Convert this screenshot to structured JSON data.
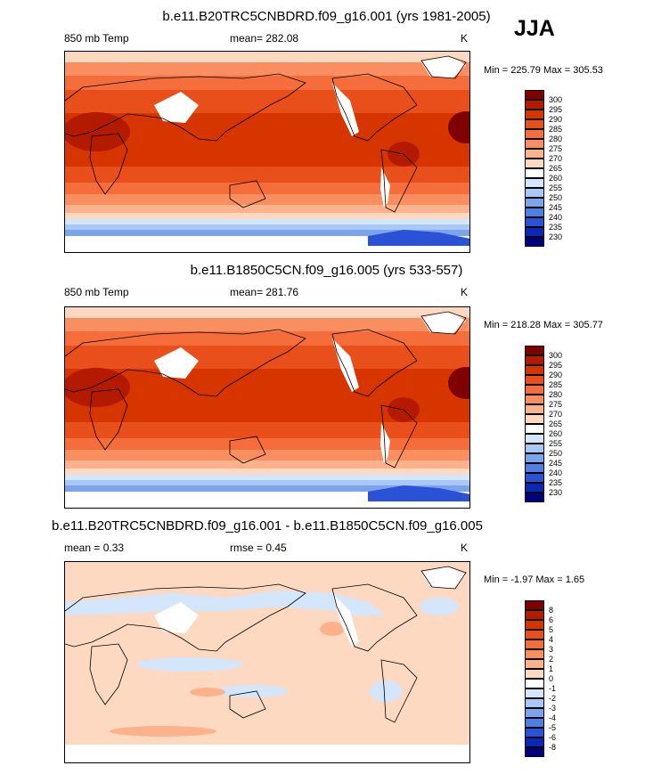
{
  "season": "JJA",
  "panels": [
    {
      "title": "b.e11.B20TRC5CNBDRD.f09_g16.001 (yrs 1981-2005)",
      "left_label": "850 mb Temp",
      "center_label": "mean= 282.08",
      "right_label": "K",
      "minmax": "Min = 225.79 Max = 305.53",
      "levels": [
        "300",
        "295",
        "290",
        "285",
        "280",
        "275",
        "270",
        "265",
        "260",
        "255",
        "250",
        "245",
        "240",
        "235",
        "230"
      ],
      "colors": [
        "#7f0000",
        "#b41a00",
        "#d63500",
        "#e84f1a",
        "#f46d3b",
        "#f98e61",
        "#fcb38c",
        "#fdd9c2",
        "#ffffff",
        "#d3e6fb",
        "#a8c8f5",
        "#7ba4ed",
        "#4f7fe3",
        "#2a52d6",
        "#0a28b8",
        "#00007f"
      ]
    },
    {
      "title": "b.e11.B1850C5CN.f09_g16.005 (yrs 533-557)",
      "left_label": "850 mb Temp",
      "center_label": "mean= 281.76",
      "right_label": "K",
      "minmax": "Min = 218.28 Max = 305.77",
      "levels": [
        "300",
        "295",
        "290",
        "285",
        "280",
        "275",
        "270",
        "265",
        "260",
        "255",
        "250",
        "245",
        "240",
        "235",
        "230"
      ],
      "colors": [
        "#7f0000",
        "#b41a00",
        "#d63500",
        "#e84f1a",
        "#f46d3b",
        "#f98e61",
        "#fcb38c",
        "#fdd9c2",
        "#ffffff",
        "#d3e6fb",
        "#a8c8f5",
        "#7ba4ed",
        "#4f7fe3",
        "#2a52d6",
        "#0a28b8",
        "#00007f"
      ]
    },
    {
      "title": "b.e11.B20TRC5CNBDRD.f09_g16.001 - b.e11.B1850C5CN.f09_g16.005",
      "left_label": "mean =   0.33",
      "center_label": "rmse =   0.45",
      "right_label": "K",
      "minmax": "Min =  -1.97 Max =   1.65",
      "levels": [
        "8",
        "6",
        "5",
        "4",
        "3",
        "2",
        "1",
        "0",
        "-1",
        "-2",
        "-3",
        "-4",
        "-5",
        "-6",
        "-8"
      ],
      "colors": [
        "#7f0000",
        "#b41a00",
        "#d63500",
        "#e84f1a",
        "#f46d3b",
        "#f98e61",
        "#fcb38c",
        "#fdd9c2",
        "#ffffff",
        "#d3e6fb",
        "#a8c8f5",
        "#7ba4ed",
        "#4f7fe3",
        "#2a52d6",
        "#0a28b8",
        "#00007f"
      ]
    }
  ]
}
